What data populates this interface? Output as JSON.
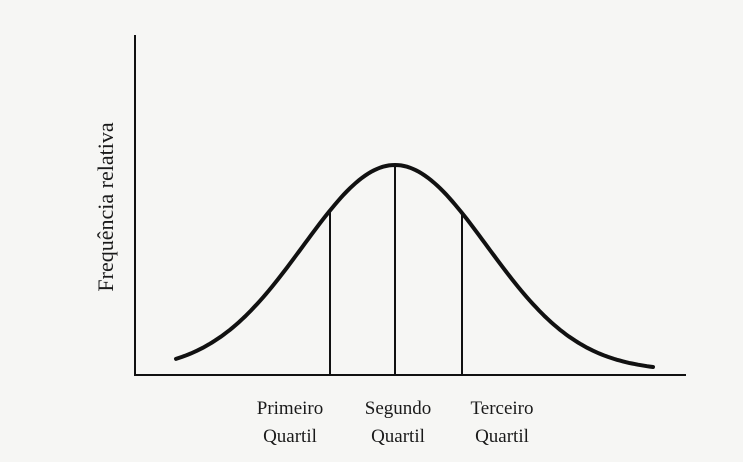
{
  "y_axis_label": "Frequência relativa",
  "quartiles": [
    {
      "lines": [
        "Primeiro",
        "Quartil"
      ]
    },
    {
      "lines": [
        "Segundo",
        "Quartil"
      ]
    },
    {
      "lines": [
        "Terceiro",
        "Quartil"
      ]
    }
  ]
}
